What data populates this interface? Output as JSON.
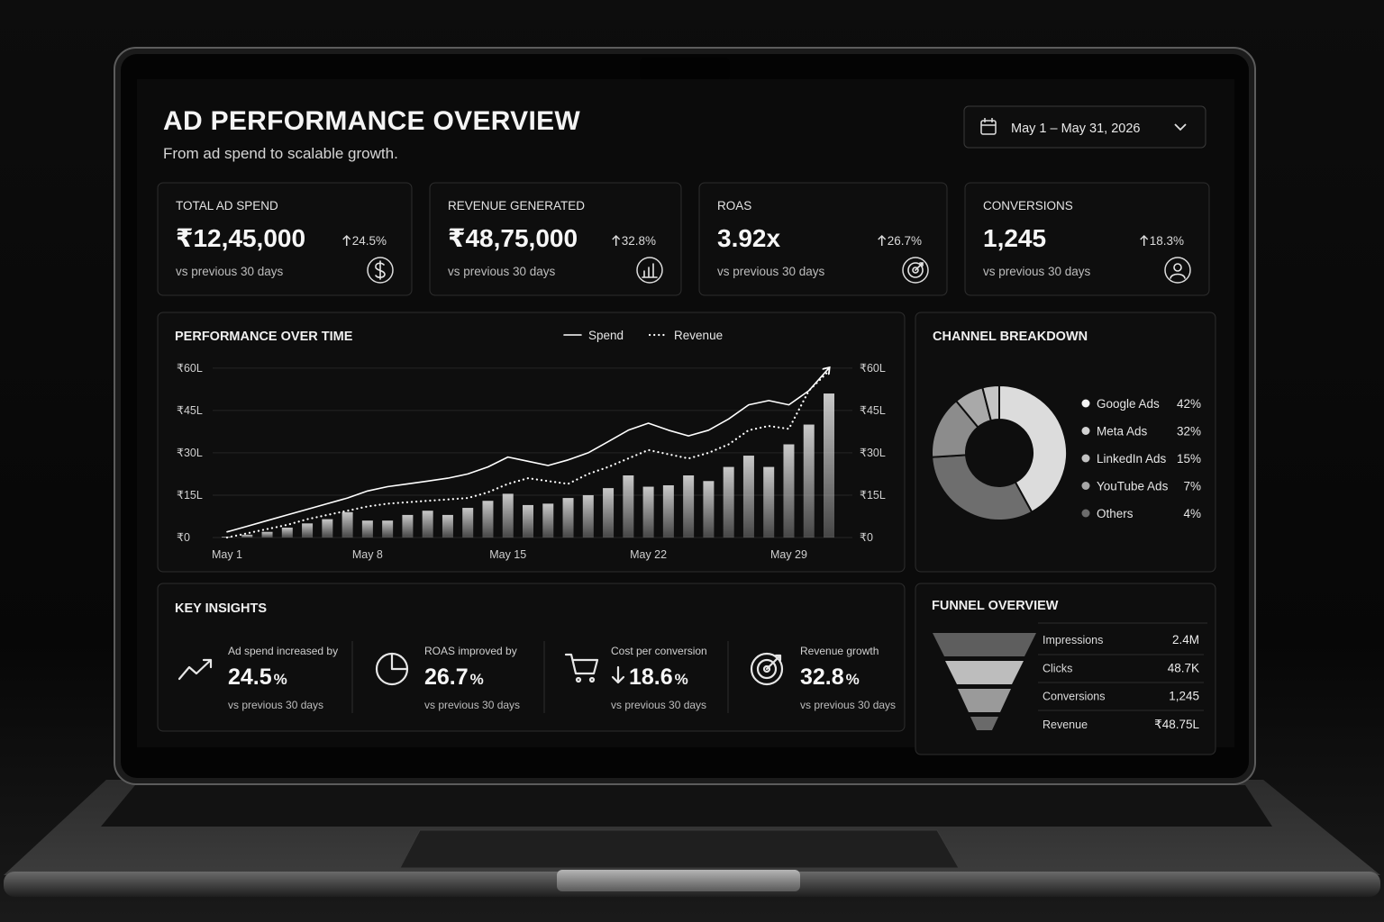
{
  "header": {
    "title": "AD PERFORMANCE OVERVIEW",
    "subtitle": "From ad spend to scalable growth.",
    "date_range": "May 1 – May 31, 2026"
  },
  "kpis": [
    {
      "label": "TOTAL AD SPEND",
      "value": "₹12,45,000",
      "change": "24.5%",
      "note": "vs previous 30 days"
    },
    {
      "label": "REVENUE GENERATED",
      "value": "₹48,75,000",
      "change": "32.8%",
      "note": "vs previous 30 days"
    },
    {
      "label": "ROAS",
      "value": "3.92x",
      "change": "26.7%",
      "note": "vs previous 30 days"
    },
    {
      "label": "CONVERSIONS",
      "value": "1,245",
      "change": "18.3%",
      "note": "vs previous 30 days"
    }
  ],
  "chart_data": [
    {
      "type": "bar",
      "title": "PERFORMANCE OVER TIME",
      "categories": [
        "May 1",
        null,
        null,
        null,
        null,
        null,
        null,
        "May 8",
        null,
        null,
        null,
        null,
        null,
        null,
        "May 15",
        null,
        null,
        null,
        null,
        null,
        null,
        "May 22",
        null,
        null,
        null,
        null,
        null,
        null,
        "May 29",
        null,
        null
      ],
      "series": [
        {
          "type": "bar",
          "color": "#c8c8c8",
          "values": [
            0.3,
            1,
            2,
            3.5,
            5,
            6.5,
            9,
            6,
            6,
            8,
            9.5,
            8,
            10.5,
            13,
            15.5,
            11.5,
            12,
            14,
            15,
            17.5,
            22,
            18,
            18.5,
            22,
            20,
            25,
            29,
            25,
            33,
            40,
            51
          ]
        },
        {
          "type": "line",
          "name": "Spend",
          "color": "#ffffff",
          "line_style": "solid",
          "values": [
            2,
            4,
            6,
            8,
            10,
            12,
            14,
            16.5,
            18,
            19,
            20,
            21,
            22.5,
            25,
            28.5,
            27,
            25.5,
            27.5,
            30,
            34,
            38,
            40.5,
            38,
            36,
            38,
            42,
            47,
            48.5,
            47,
            52,
            60
          ]
        },
        {
          "type": "line",
          "name": "Revenue",
          "color": "#ffffff",
          "line_style": "dotted",
          "values": [
            0,
            1.5,
            3,
            4.5,
            6.5,
            8,
            9.5,
            11,
            12,
            12.5,
            13,
            13.5,
            14,
            16,
            19,
            21,
            20,
            19,
            22.5,
            25,
            28,
            31,
            29.5,
            28,
            30,
            33,
            38,
            39.5,
            38.5,
            52,
            59
          ]
        }
      ],
      "ylim": [
        0,
        66
      ],
      "yticks": [
        {
          "value": 0,
          "label": "₹0"
        },
        {
          "value": 15,
          "label": "₹15L"
        },
        {
          "value": 30,
          "label": "₹30L"
        },
        {
          "value": 45,
          "label": "₹45L"
        },
        {
          "value": 60,
          "label": "₹60L"
        }
      ],
      "y2lim": [
        0,
        66
      ],
      "y2ticks": [
        {
          "value": 0,
          "label": "₹0"
        },
        {
          "value": 15,
          "label": "₹15L"
        },
        {
          "value": 30,
          "label": "₹30L"
        },
        {
          "value": 45,
          "label": "₹45L"
        },
        {
          "value": 60,
          "label": "₹60L"
        }
      ],
      "grid": true
    },
    {
      "type": "pie",
      "title": "CHANNEL BREAKDOWN",
      "donut": true,
      "categories": [
        "Google Ads",
        "Meta Ads",
        "LinkedIn Ads",
        "YouTube Ads",
        "Others"
      ],
      "values": [
        42,
        32,
        15,
        7,
        4
      ],
      "value_labels": [
        "42%",
        "32%",
        "15%",
        "7%",
        "4%"
      ],
      "colors": [
        "#dcdcdc",
        "#6e6e6e",
        "#8c8c8c",
        "#a9a9a9",
        "#c4c4c4"
      ],
      "legend_colors": [
        "#f4f4f4",
        "#d2d2d2",
        "#c2c2c2",
        "#a6a6a6",
        "#6c6c6c"
      ]
    }
  ],
  "insights": {
    "title": "KEY INSIGHTS",
    "items": [
      {
        "label": "Ad spend increased by",
        "value": "24.5",
        "unit": "%",
        "note": "vs previous 30 days"
      },
      {
        "label": "ROAS improved by",
        "value": "26.7",
        "unit": "%",
        "note": "vs previous 30 days"
      },
      {
        "label": "Cost per conversion",
        "value": "18.6",
        "unit": "%",
        "note": "vs previous 30 days"
      },
      {
        "label": "Revenue growth",
        "value": "32.8",
        "unit": "%",
        "note": "vs previous 30 days"
      }
    ]
  },
  "funnel": {
    "title": "FUNNEL OVERVIEW",
    "rows": [
      {
        "label": "Impressions",
        "value": "2.4M"
      },
      {
        "label": "Clicks",
        "value": "48.7K"
      },
      {
        "label": "Conversions",
        "value": "1,245"
      },
      {
        "label": "Revenue",
        "value": "₹48.75L"
      }
    ]
  }
}
